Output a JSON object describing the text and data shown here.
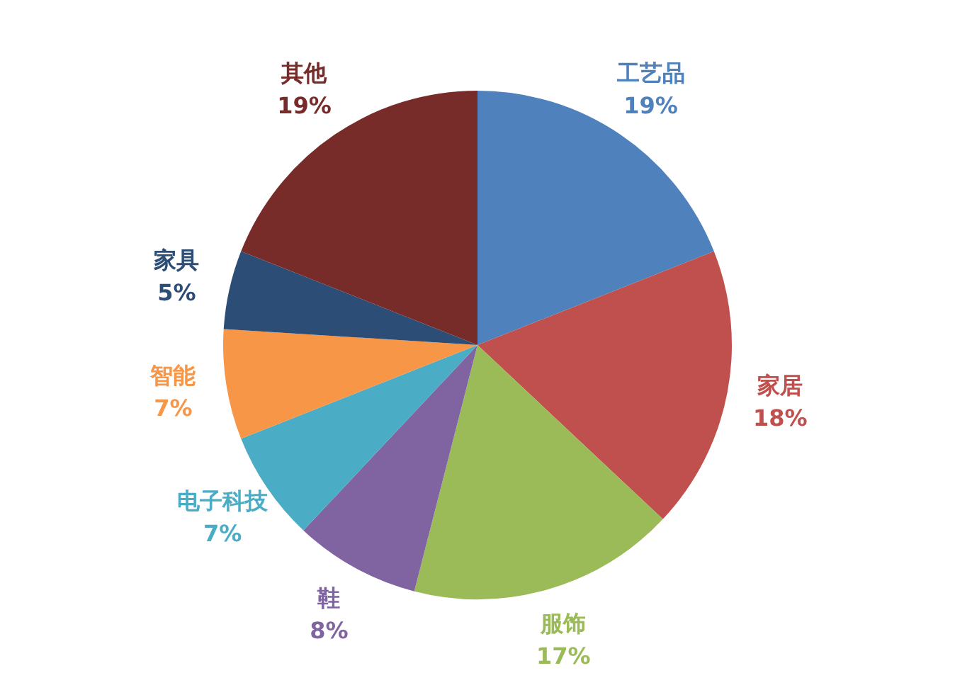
{
  "chart_data": {
    "type": "pie",
    "categories": [
      "工艺品",
      "家居",
      "服饰",
      "鞋",
      "电子科技",
      "智能",
      "家具",
      "其他"
    ],
    "values": [
      19,
      18,
      17,
      8,
      7,
      7,
      5,
      19
    ],
    "value_labels": [
      "19%",
      "18%",
      "17%",
      "8%",
      "7%",
      "7%",
      "5%",
      "19%"
    ],
    "colors": [
      "#4f81bd",
      "#c0504d",
      "#9bbb59",
      "#8064a2",
      "#4bacc6",
      "#f79646",
      "#2c4d75",
      "#772c2a"
    ],
    "legend": false
  }
}
